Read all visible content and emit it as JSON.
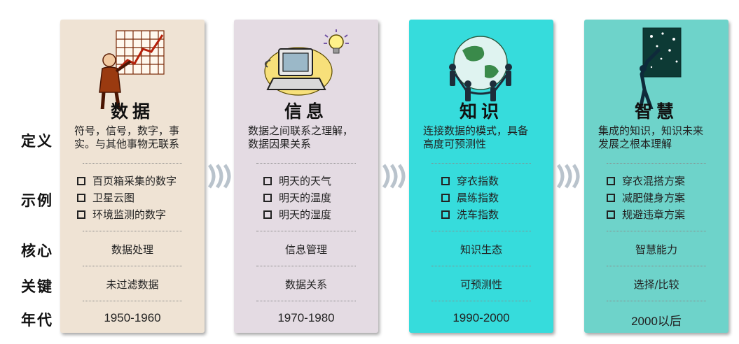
{
  "row_labels": {
    "definition": "定义",
    "examples": "示例",
    "core": "核心",
    "key": "关键",
    "era": "年代"
  },
  "colors": {
    "data": "#efe3d4",
    "info": "#e4dbe3",
    "knowledge": "#36dcdc",
    "wisdom": "#6ed3ca",
    "chevron": "#b9c3cc"
  },
  "stages": [
    {
      "title": "数据",
      "definition": [
        "符号，信号，数字，事",
        "实。与其他事物无联系"
      ],
      "examples": [
        "百页箱采集的数字",
        "卫星云图",
        "环境监测的数字"
      ],
      "core": "数据处理",
      "key": "未过滤数据",
      "era": "1950-1960",
      "icon": "chart-presenter-icon"
    },
    {
      "title": "信息",
      "definition": [
        "数据之间联系之理解，",
        "数据因果关系"
      ],
      "examples": [
        "明天的天气",
        "明天的温度",
        "明天的湿度"
      ],
      "core": "信息管理",
      "key": "数据关系",
      "era": "1970-1980",
      "icon": "computer-lightbulb-icon"
    },
    {
      "title": "知识",
      "definition": [
        "连接数据的模式，具备",
        "高度可预测性"
      ],
      "examples": [
        "穿衣指数",
        "晨练指数",
        "洗车指数"
      ],
      "core": "知识生态",
      "key": "可预测性",
      "era": "1990-2000",
      "icon": "people-globe-icon"
    },
    {
      "title": "智慧",
      "definition": [
        "集成的知识，知识未来",
        "发展之根本理解"
      ],
      "examples": [
        "穿衣混搭方案",
        "减肥健身方案",
        "规避违章方案"
      ],
      "core": "智慧能力",
      "key": "选择/比较",
      "era": "2000以后",
      "icon": "reaching-stars-icon"
    }
  ]
}
